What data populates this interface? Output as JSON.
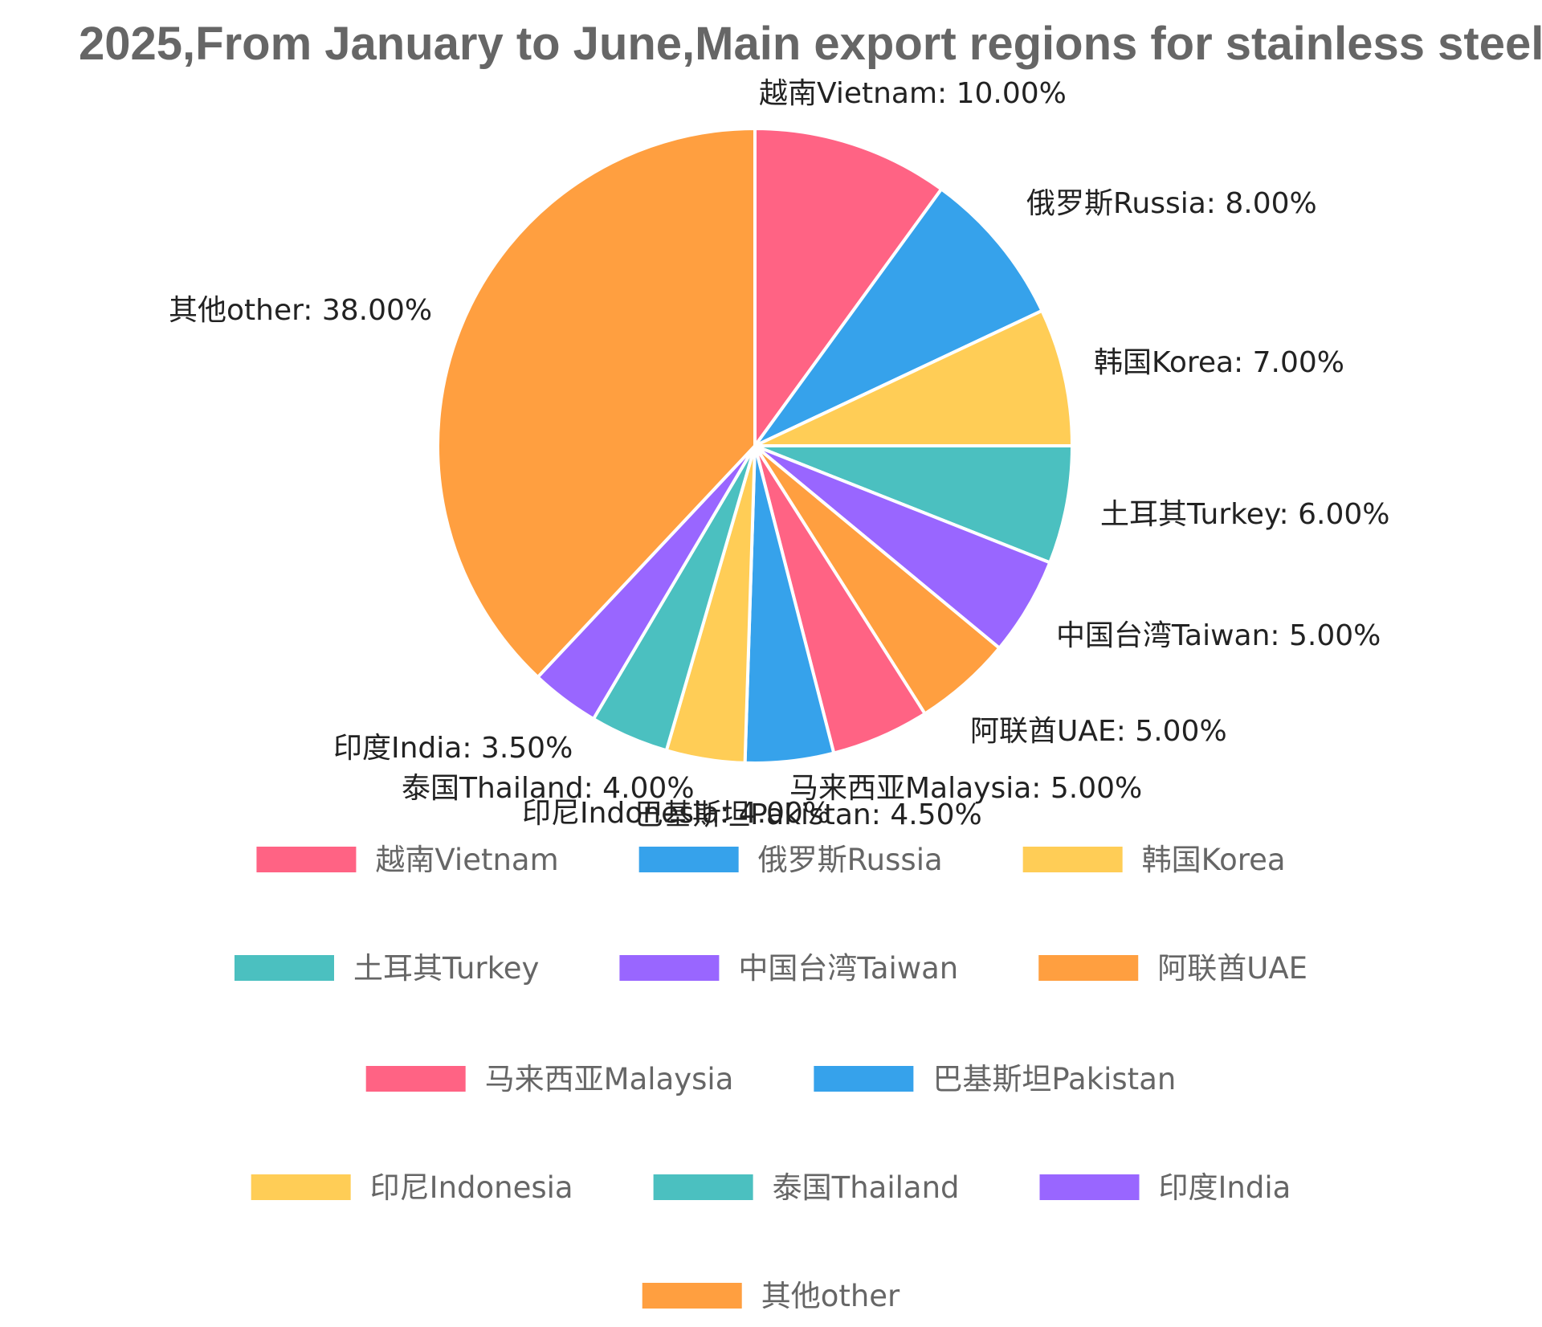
{
  "chart_data": {
    "type": "pie",
    "title": "2025,From January to June,Main export regions for stainless steel",
    "series": [
      {
        "name": "越南Vietnam",
        "value": 10.0,
        "label": "越南Vietnam: 10.00%",
        "color": "#ff6384"
      },
      {
        "name": "俄罗斯Russia",
        "value": 8.0,
        "label": "俄罗斯Russia: 8.00%",
        "color": "#36a2eb"
      },
      {
        "name": "韩国Korea",
        "value": 7.0,
        "label": "韩国Korea: 7.00%",
        "color": "#ffcd56"
      },
      {
        "name": "土耳其Turkey",
        "value": 6.0,
        "label": "土耳其Turkey: 6.00%",
        "color": "#4bc0c0"
      },
      {
        "name": "中国台湾Taiwan",
        "value": 5.0,
        "label": "中国台湾Taiwan: 5.00%",
        "color": "#9966ff"
      },
      {
        "name": "阿联酋UAE",
        "value": 5.0,
        "label": "阿联酋UAE: 5.00%",
        "color": "#ff9f40"
      },
      {
        "name": "马来西亚Malaysia",
        "value": 5.0,
        "label": "马来西亚Malaysia: 5.00%",
        "color": "#ff6384"
      },
      {
        "name": "巴基斯坦Pakistan",
        "value": 4.5,
        "label": "巴基斯坦Pakistan: 4.50%",
        "color": "#36a2eb"
      },
      {
        "name": "印尼Indonesia",
        "value": 4.0,
        "label": "印尼Indonesia: 4.00%",
        "color": "#ffcd56"
      },
      {
        "name": "泰国Thailand",
        "value": 4.0,
        "label": "泰国Thailand: 4.00%",
        "color": "#4bc0c0"
      },
      {
        "name": "印度India",
        "value": 3.5,
        "label": "印度India: 3.50%",
        "color": "#9966ff"
      },
      {
        "name": "其他other",
        "value": 38.0,
        "label": "其他other: 38.00%",
        "color": "#ff9f40"
      }
    ],
    "legend_position": "bottom"
  }
}
